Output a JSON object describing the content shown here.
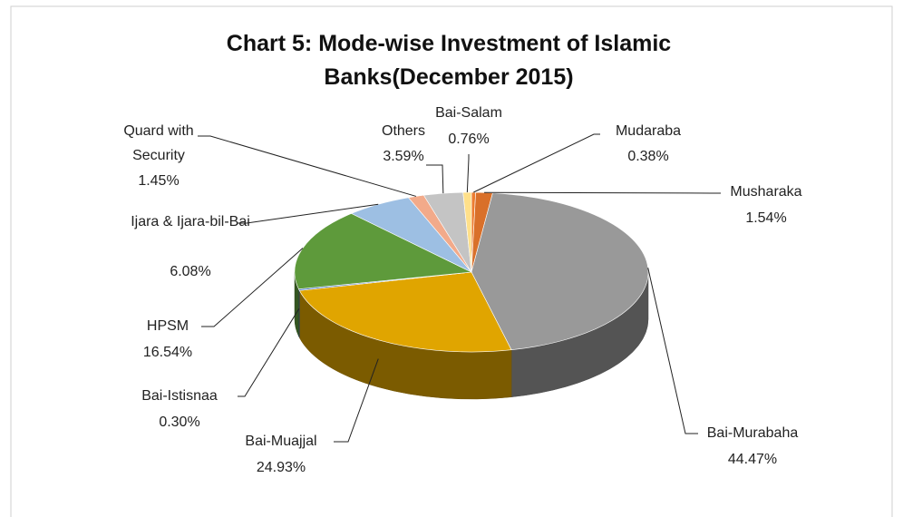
{
  "chart_data": {
    "type": "pie3d",
    "title": "Chart 5: Mode-wise Investment of Islamic Banks(December 2015)",
    "categories": [
      "Mudaraba",
      "Musharaka",
      "Bai-Murabaha",
      "Bai-Muajjal",
      "Bai-Istisnaa",
      "HPSM",
      "Ijara & Ijara-bil-Bai",
      "Quard with Security",
      "Others",
      "Bai-Salam"
    ],
    "values": [
      0.38,
      1.54,
      44.47,
      24.93,
      0.3,
      16.54,
      6.08,
      1.45,
      3.59,
      0.76
    ],
    "value_labels": [
      "0.38%",
      "1.54%",
      "44.47%",
      "24.93%",
      "0.30%",
      "16.54%",
      "6.08%",
      "1.45%",
      "3.59%",
      "0.76%"
    ],
    "colors": [
      "#ed7d31",
      "#d9702a",
      "#999999",
      "#e0a500",
      "#4472c4",
      "#5e9a3b",
      "#9dbfe3",
      "#f2aa8a",
      "#c4c4c4",
      "#ffe08a"
    ]
  }
}
